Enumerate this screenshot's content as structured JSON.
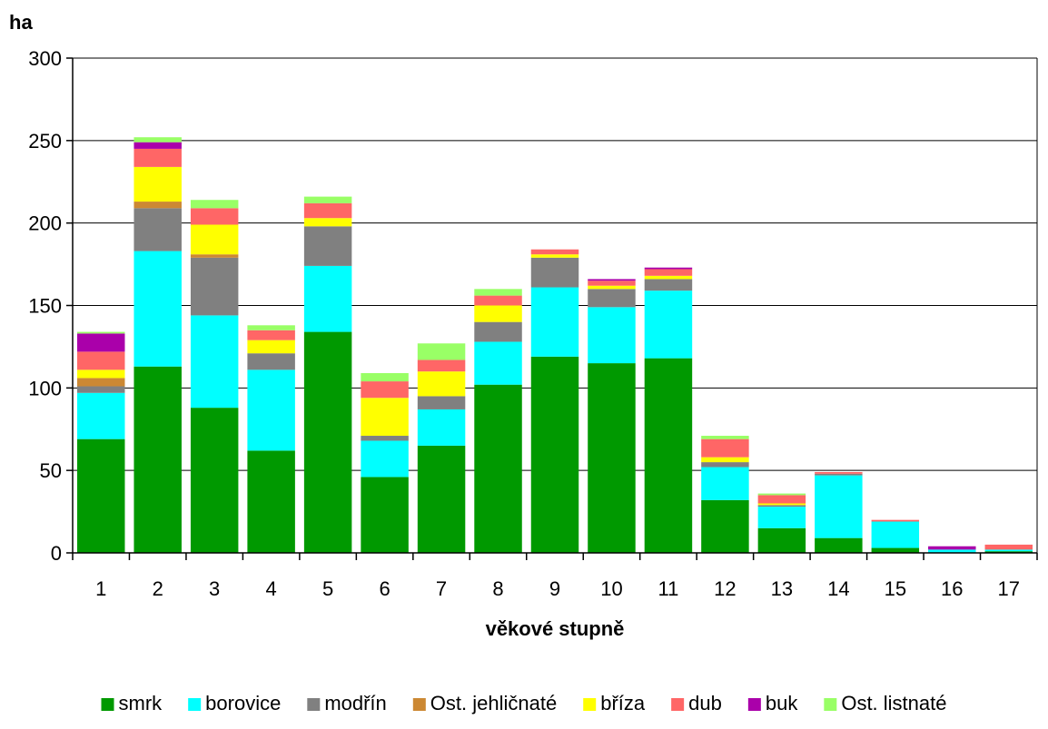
{
  "chart_data": {
    "type": "bar",
    "stacked": true,
    "ylabel": "ha",
    "xlabel": "věkové stupně",
    "ylim": [
      0,
      300
    ],
    "yticks": [
      0,
      50,
      100,
      150,
      200,
      250,
      300
    ],
    "grid": true,
    "legend_position": "bottom",
    "categories": [
      "1",
      "2",
      "3",
      "4",
      "5",
      "6",
      "7",
      "8",
      "9",
      "10",
      "11",
      "12",
      "13",
      "14",
      "15",
      "16",
      "17"
    ],
    "series": [
      {
        "name": "smrk",
        "color": "#009900",
        "values": [
          69,
          113,
          88,
          62,
          134,
          46,
          65,
          102,
          119,
          115,
          118,
          32,
          15,
          9,
          3,
          0,
          1
        ]
      },
      {
        "name": "borovice",
        "color": "#00FFFF",
        "values": [
          28,
          70,
          56,
          49,
          40,
          22,
          22,
          26,
          42,
          34,
          41,
          20,
          13,
          38,
          16,
          2,
          1
        ]
      },
      {
        "name": "modřín",
        "color": "#808080",
        "values": [
          4,
          26,
          35,
          10,
          24,
          3,
          8,
          12,
          18,
          11,
          7,
          3,
          1,
          1,
          0,
          0,
          0
        ]
      },
      {
        "name": "Ost. jehličnaté",
        "color": "#CC8833",
        "values": [
          5,
          4,
          2,
          0,
          0,
          0,
          0,
          0,
          0,
          0,
          0,
          0,
          0,
          0,
          0,
          0,
          0
        ]
      },
      {
        "name": "bříza",
        "color": "#FFFF00",
        "values": [
          5,
          21,
          18,
          8,
          5,
          23,
          15,
          10,
          2,
          2,
          2,
          3,
          1,
          0,
          0,
          0,
          0
        ]
      },
      {
        "name": "dub",
        "color": "#FF6666",
        "values": [
          11,
          11,
          10,
          6,
          9,
          10,
          7,
          6,
          3,
          3,
          4,
          11,
          5,
          1,
          1,
          0,
          3
        ]
      },
      {
        "name": "buk",
        "color": "#AA00AA",
        "values": [
          11,
          4,
          0,
          0,
          0,
          0,
          0,
          0,
          0,
          1,
          1,
          0,
          0,
          0,
          0,
          2,
          0
        ]
      },
      {
        "name": "Ost. listnaté",
        "color": "#99FF66",
        "values": [
          1,
          3,
          5,
          3,
          4,
          5,
          10,
          4,
          0,
          0,
          0,
          2,
          1,
          0,
          0,
          0,
          0
        ]
      }
    ]
  }
}
